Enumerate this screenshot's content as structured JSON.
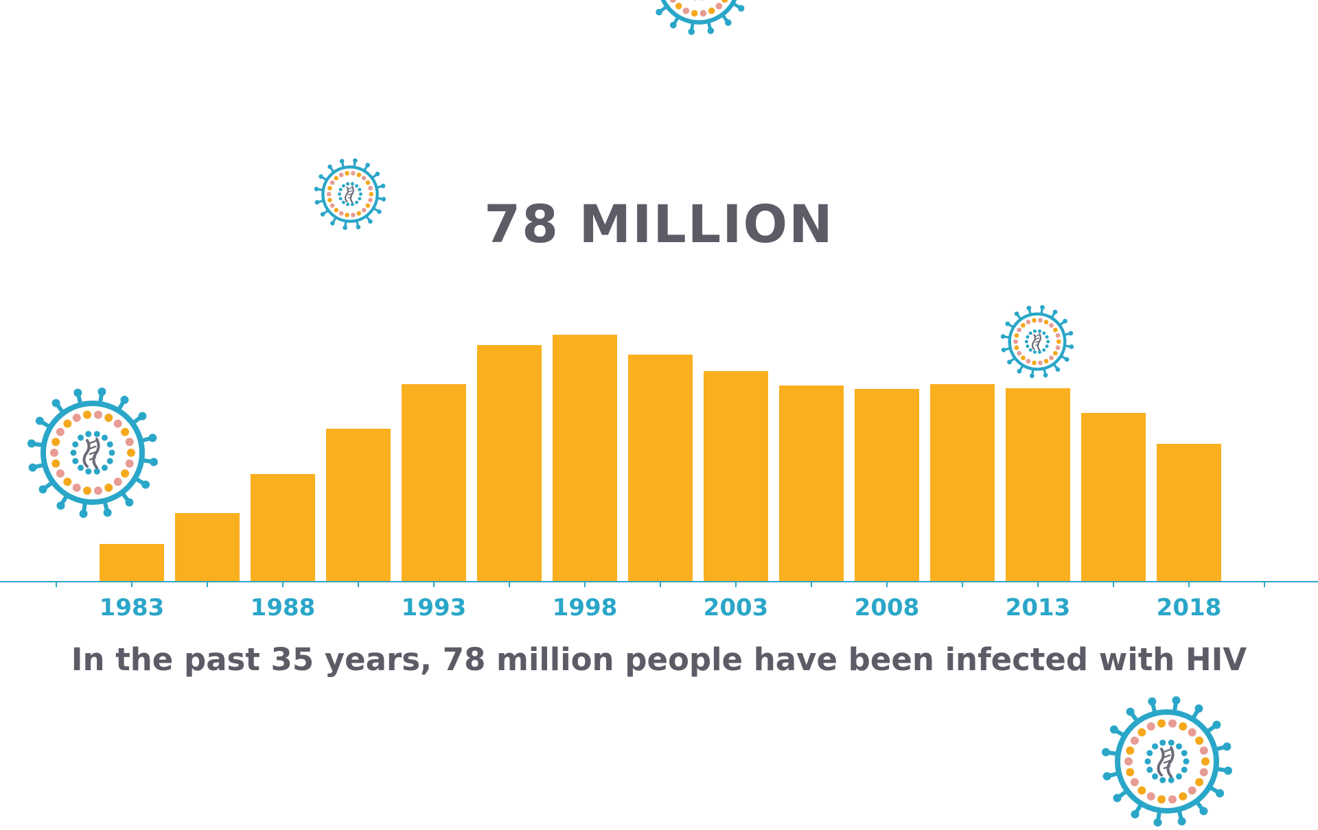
{
  "headline": "78 MILLION",
  "caption": "In the past 35 years, 78 million people have been infected with HIV",
  "colors": {
    "bar": "#faaf1f",
    "axis": "#2aa6c8",
    "text": "#5c5c67",
    "virus_ring": "#2aa6c8",
    "virus_dot_orange": "#f5a81c",
    "virus_dot_pink": "#e79c95",
    "virus_rna": "#6b6c78"
  },
  "icons": [
    "virus-icon"
  ],
  "chart_data": {
    "type": "bar",
    "x": [
      1983,
      1985.5,
      1988,
      1990.5,
      1993,
      1995.5,
      1998,
      2000.5,
      2003,
      2005.5,
      2008,
      2010.5,
      2013,
      2015.5,
      2018
    ],
    "values": [
      0.55,
      1.0,
      1.57,
      2.23,
      2.88,
      3.45,
      3.6,
      3.31,
      3.07,
      2.86,
      2.81,
      2.88,
      2.82,
      2.46,
      2.01
    ],
    "tick_labels": [
      "1983",
      "1988",
      "1993",
      "1998",
      "2003",
      "2008",
      "2013",
      "2018"
    ],
    "title": "78 MILLION",
    "xlabel": "",
    "ylabel": "",
    "ylim": [
      0,
      4
    ],
    "grid": false
  }
}
